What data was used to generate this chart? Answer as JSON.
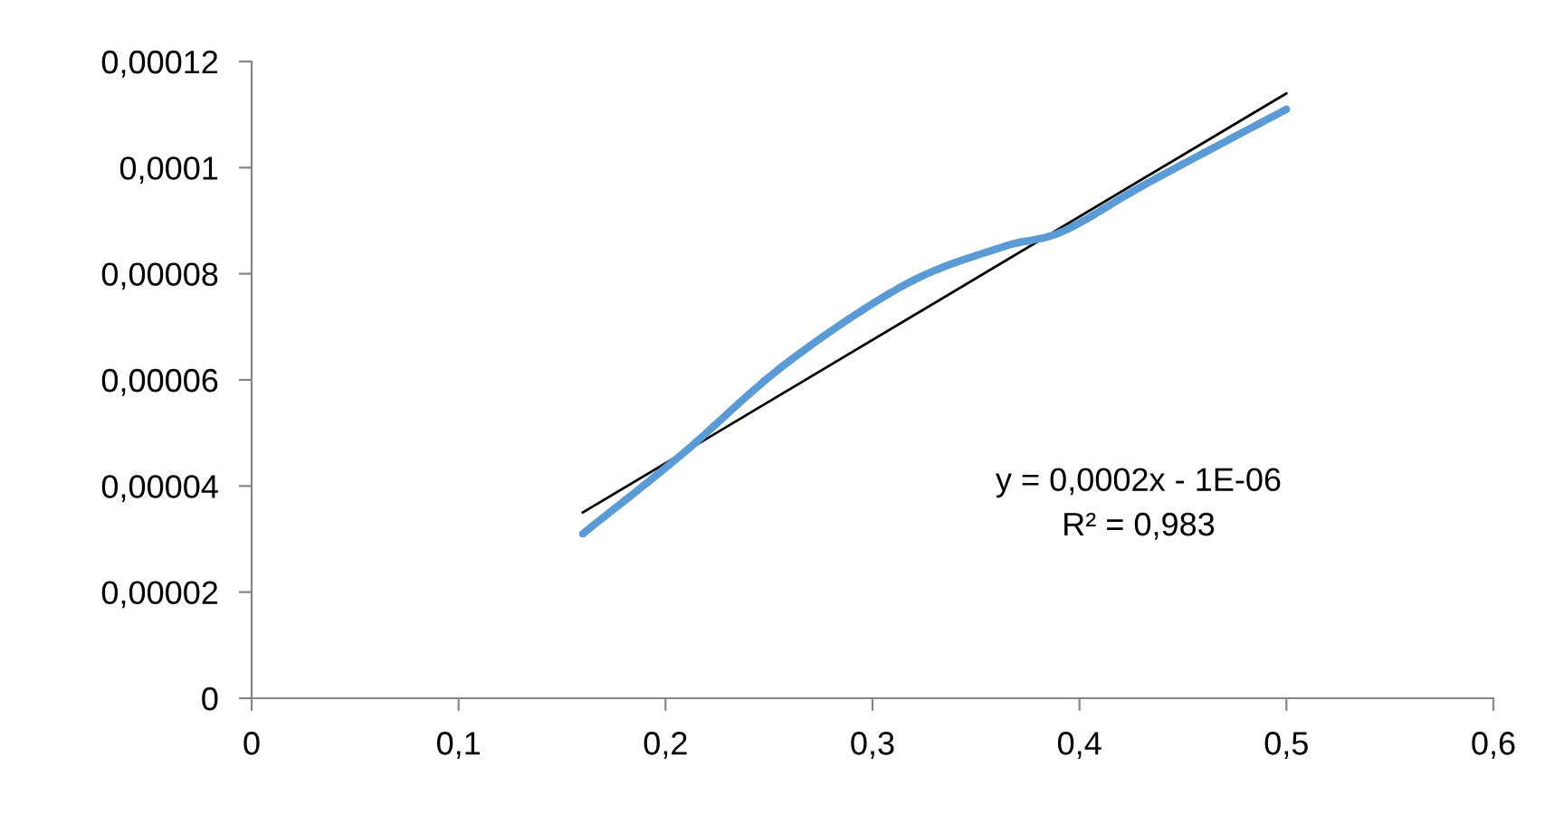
{
  "chart_data": {
    "type": "line",
    "xlim": [
      0,
      0.6
    ],
    "xticks": [
      {
        "value": 0,
        "label": "0"
      },
      {
        "value": 0.1,
        "label": "0,1"
      },
      {
        "value": 0.2,
        "label": "0,2"
      },
      {
        "value": 0.3,
        "label": "0,3"
      },
      {
        "value": 0.4,
        "label": "0,4"
      },
      {
        "value": 0.5,
        "label": "0,5"
      },
      {
        "value": 0.6,
        "label": "0,6"
      }
    ],
    "ylim": [
      0,
      0.00012
    ],
    "yticks": [
      {
        "value": 0,
        "label": "0"
      },
      {
        "value": 2e-05,
        "label": "0,00002"
      },
      {
        "value": 4e-05,
        "label": "0,00004"
      },
      {
        "value": 6e-05,
        "label": "0,00006"
      },
      {
        "value": 8e-05,
        "label": "0,00008"
      },
      {
        "value": 0.0001,
        "label": "0,0001"
      },
      {
        "value": 0.00012,
        "label": "0,00012"
      }
    ],
    "grid": false,
    "legend": false,
    "marker": "none",
    "series": [
      {
        "color": "#5b9bd5",
        "x": [
          0.16,
          0.208,
          0.258,
          0.316,
          0.3625,
          0.392,
          0.4325,
          0.5
        ],
        "values": [
          3.1e-05,
          4.6e-05,
          6.3e-05,
          7.8e-05,
          8.5e-05,
          8.8e-05,
          9.7e-05,
          0.000111
        ]
      },
      {
        "color": "#000000",
        "line_style": "solid",
        "x": [
          0.16,
          0.5
        ],
        "values": [
          3.5e-05,
          0.000114
        ]
      }
    ],
    "annotations": [
      "y = 0,0002x - 1E-06\nR² = 0,983"
    ]
  }
}
